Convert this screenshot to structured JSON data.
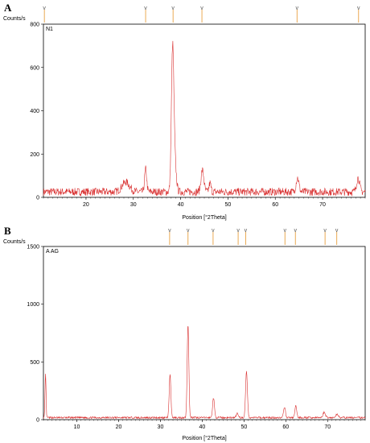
{
  "chart_data": [
    {
      "type": "line",
      "panel_label": "A",
      "sample_label": "N1",
      "ylabel": "Counts/s",
      "xlabel": "Position [°2Theta]",
      "xlim": [
        11,
        79
      ],
      "ylim": [
        0,
        800
      ],
      "x_ticks": [
        20,
        30,
        40,
        50,
        60,
        70
      ],
      "y_ticks": [
        0,
        200,
        400,
        600,
        800
      ],
      "grid": false,
      "color": "#d93030",
      "peak_markers": [
        11.2,
        32.6,
        38.4,
        44.5,
        64.6,
        77.6
      ],
      "peaks": [
        {
          "x": 28.4,
          "y": 45,
          "w": 0.8
        },
        {
          "x": 32.6,
          "y": 105,
          "w": 0.22
        },
        {
          "x": 38.3,
          "y": 655,
          "w": 0.26
        },
        {
          "x": 38.8,
          "y": 120,
          "w": 0.3
        },
        {
          "x": 44.6,
          "y": 100,
          "w": 0.3
        },
        {
          "x": 46.2,
          "y": 40,
          "w": 0.2
        },
        {
          "x": 64.7,
          "y": 65,
          "w": 0.3
        },
        {
          "x": 77.5,
          "y": 65,
          "w": 0.32
        }
      ],
      "baseline": 20,
      "noise": 18
    },
    {
      "type": "line",
      "panel_label": "B",
      "sample_label": "A AG",
      "ylabel": "Counts/s",
      "xlabel": "Position [°2Theta]",
      "xlim": [
        2,
        79
      ],
      "ylim": [
        0,
        1500
      ],
      "x_ticks": [
        10,
        20,
        30,
        40,
        50,
        60,
        70
      ],
      "y_ticks": [
        0,
        500,
        1000,
        1500
      ],
      "grid": false,
      "color": "#d93030",
      "peak_markers": [
        32.2,
        36.6,
        42.6,
        48.6,
        50.4,
        59.8,
        62.3,
        69.4,
        72.2
      ],
      "peaks": [
        {
          "x": 2.5,
          "y": 380,
          "w": 0.12
        },
        {
          "x": 32.3,
          "y": 370,
          "w": 0.2
        },
        {
          "x": 36.6,
          "y": 810,
          "w": 0.2
        },
        {
          "x": 42.7,
          "y": 170,
          "w": 0.22
        },
        {
          "x": 48.4,
          "y": 35,
          "w": 0.25
        },
        {
          "x": 50.6,
          "y": 400,
          "w": 0.22
        },
        {
          "x": 59.7,
          "y": 90,
          "w": 0.22
        },
        {
          "x": 62.4,
          "y": 100,
          "w": 0.22
        },
        {
          "x": 69.2,
          "y": 45,
          "w": 0.3
        },
        {
          "x": 72.3,
          "y": 30,
          "w": 0.3
        }
      ],
      "baseline": 15,
      "noise": 8
    }
  ]
}
